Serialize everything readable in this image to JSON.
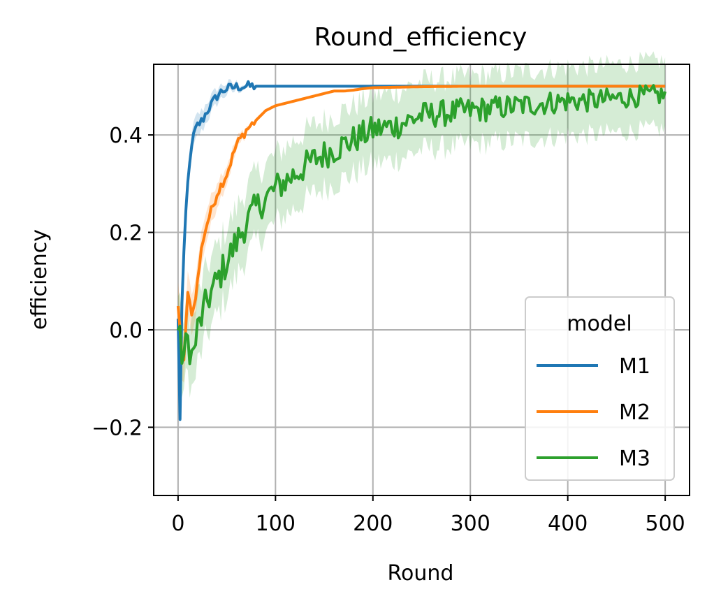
{
  "chart_data": {
    "type": "line",
    "title": "Round_efficiency",
    "xlabel": "Round",
    "ylabel": "efficiency",
    "xlim": [
      -25,
      525
    ],
    "ylim": [
      -0.34,
      0.545
    ],
    "xticks": [
      0,
      100,
      200,
      300,
      400,
      500
    ],
    "xtick_labels": [
      "0",
      "100",
      "200",
      "300",
      "400",
      "500"
    ],
    "yticks": [
      -0.2,
      0.0,
      0.2,
      0.4
    ],
    "ytick_labels": [
      "−0.2",
      "0.0",
      "0.2",
      "0.4"
    ],
    "grid": true,
    "legend": {
      "title": "model",
      "position": "lower-right"
    },
    "series": [
      {
        "name": "M1",
        "color": "#1f77b4",
        "x": [
          0,
          2,
          4,
          6,
          8,
          10,
          12,
          14,
          16,
          18,
          20,
          25,
          30,
          35,
          40,
          45,
          50,
          55,
          60,
          70,
          80,
          100,
          150,
          200,
          250,
          300,
          350,
          400,
          450,
          500
        ],
        "y": [
          0.02,
          -0.18,
          0.05,
          0.15,
          0.24,
          0.3,
          0.35,
          0.37,
          0.4,
          0.41,
          0.42,
          0.43,
          0.45,
          0.465,
          0.48,
          0.49,
          0.495,
          0.497,
          0.499,
          0.5,
          0.5,
          0.5,
          0.5,
          0.5,
          0.5,
          0.5,
          0.5,
          0.5,
          0.5,
          0.5
        ],
        "band": 0.03
      },
      {
        "name": "M2",
        "color": "#ff7f0e",
        "x": [
          0,
          5,
          10,
          15,
          20,
          25,
          30,
          40,
          50,
          60,
          70,
          80,
          90,
          100,
          110,
          120,
          130,
          140,
          150,
          160,
          170,
          180,
          190,
          200,
          225,
          250,
          300,
          350,
          400,
          450,
          500
        ],
        "y": [
          0.05,
          -0.09,
          0.07,
          0.03,
          0.1,
          0.18,
          0.22,
          0.28,
          0.32,
          0.38,
          0.41,
          0.43,
          0.45,
          0.46,
          0.465,
          0.47,
          0.475,
          0.48,
          0.485,
          0.49,
          0.49,
          0.492,
          0.495,
          0.497,
          0.498,
          0.499,
          0.5,
          0.5,
          0.5,
          0.5,
          0.5
        ],
        "band": 0.05
      },
      {
        "name": "M3",
        "color": "#2ca02c",
        "x": [
          0,
          5,
          10,
          15,
          20,
          25,
          30,
          40,
          50,
          60,
          70,
          80,
          90,
          100,
          120,
          140,
          160,
          180,
          200,
          225,
          250,
          275,
          300,
          325,
          350,
          375,
          400,
          425,
          450,
          475,
          500
        ],
        "y": [
          0.0,
          -0.06,
          -0.02,
          -0.06,
          0.0,
          0.03,
          0.06,
          0.1,
          0.14,
          0.18,
          0.22,
          0.25,
          0.27,
          0.29,
          0.32,
          0.35,
          0.37,
          0.39,
          0.41,
          0.42,
          0.44,
          0.445,
          0.45,
          0.455,
          0.46,
          0.465,
          0.47,
          0.47,
          0.475,
          0.48,
          0.482
        ],
        "band": 0.07,
        "noise": 0.035
      }
    ]
  }
}
